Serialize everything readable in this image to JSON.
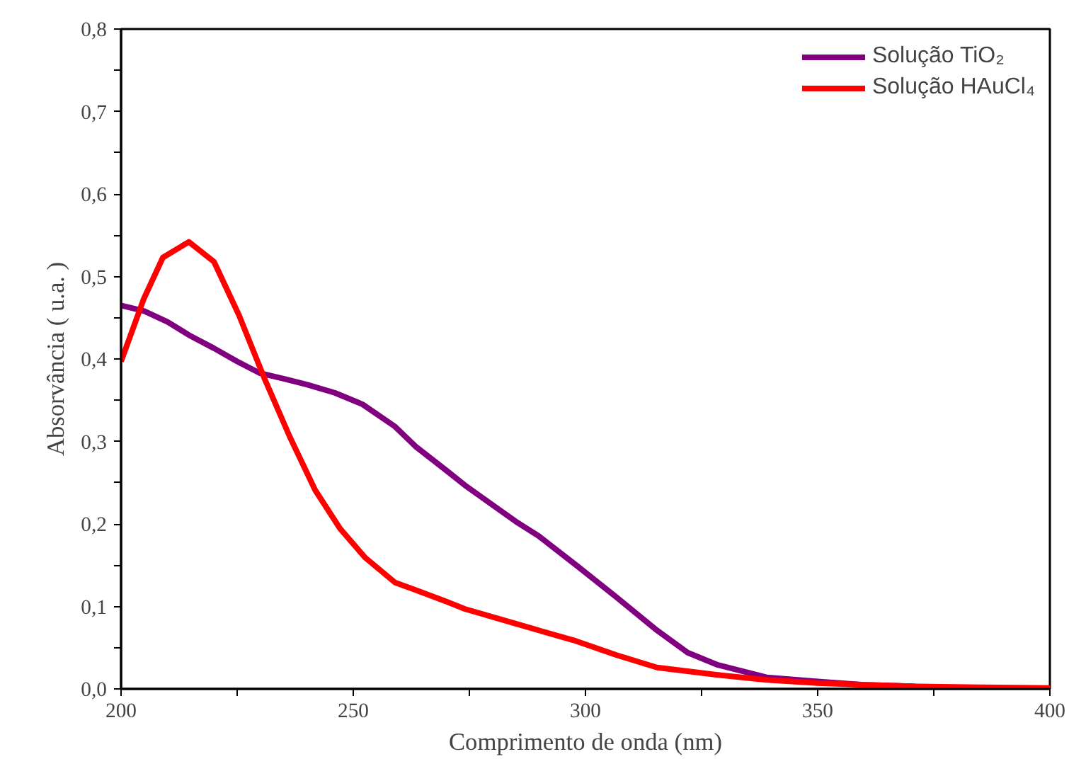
{
  "chart_data": {
    "type": "line",
    "xlabel": "Comprimento de onda (nm)",
    "ylabel": "Absorvância ( u.a. )",
    "xlim": [
      200,
      400
    ],
    "ylim": [
      0,
      0.8
    ],
    "xticks": [
      200,
      {
        "value": 225,
        "label": null
      },
      250,
      {
        "value": 275,
        "label": null
      },
      300,
      {
        "value": 325,
        "label": null
      },
      350,
      {
        "value": 375,
        "label": null
      },
      400
    ],
    "yticks": [
      {
        "value": 0,
        "label": "0,0"
      },
      {
        "value": 0.05,
        "label": null
      },
      {
        "value": 0.1,
        "label": "0,1"
      },
      {
        "value": 0.15,
        "label": null
      },
      {
        "value": 0.2,
        "label": "0,2"
      },
      {
        "value": 0.25,
        "label": null
      },
      {
        "value": 0.3,
        "label": "0,3"
      },
      {
        "value": 0.35,
        "label": null
      },
      {
        "value": 0.4,
        "label": "0,4"
      },
      {
        "value": 0.45,
        "label": null
      },
      {
        "value": 0.5,
        "label": "0,5"
      },
      {
        "value": 0.55,
        "label": null
      },
      {
        "value": 0.6,
        "label": "0,6"
      },
      {
        "value": 0.65,
        "label": null
      },
      {
        "value": 0.7,
        "label": "0,7"
      },
      {
        "value": 0.75,
        "label": null
      },
      {
        "value": 0.8,
        "label": "0,8"
      }
    ],
    "grid": false,
    "legend": "top right",
    "line_style": "solid",
    "series": [
      {
        "name": "Solução TiO₂",
        "color": "#800080",
        "x": [
          200,
          205,
          210,
          214.6,
          220,
          225,
          229.8,
          235,
          240,
          246,
          252,
          259,
          263.4,
          270,
          274,
          280,
          285,
          290,
          298,
          306.7,
          315.4,
          322,
          328.5,
          339,
          350,
          360,
          371
        ],
        "values": [
          0.465,
          0.458,
          0.445,
          0.429,
          0.413,
          0.397,
          0.383,
          0.376,
          0.369,
          0.359,
          0.345,
          0.318,
          0.294,
          0.265,
          0.247,
          0.223,
          0.203,
          0.185,
          0.15,
          0.111,
          0.071,
          0.044,
          0.029,
          0.014,
          0.009,
          0.005,
          0.003
        ]
      },
      {
        "name": "Solução HAuCl₄",
        "color": "#ff0000",
        "x": [
          200,
          204.9,
          209,
          214.6,
          220,
          225.4,
          230.9,
          236.3,
          241.8,
          247.2,
          252.6,
          259,
          263.4,
          270,
          274,
          285,
          298,
          306.7,
          315.4,
          328.5,
          339,
          350,
          360,
          371,
          385,
          400
        ],
        "values": [
          0.397,
          0.473,
          0.523,
          0.542,
          0.518,
          0.453,
          0.376,
          0.306,
          0.241,
          0.194,
          0.159,
          0.129,
          0.12,
          0.106,
          0.097,
          0.079,
          0.058,
          0.041,
          0.026,
          0.017,
          0.011,
          0.007,
          0.005,
          0.003,
          0.002,
          0.001
        ]
      }
    ]
  }
}
